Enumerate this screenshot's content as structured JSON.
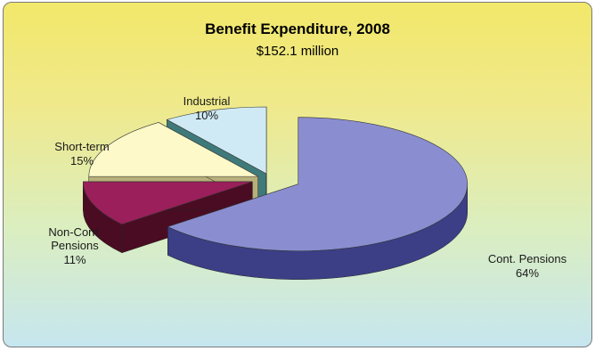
{
  "chart_data": {
    "type": "pie",
    "title": "Benefit Expenditure, 2008",
    "subtitle": "$152.1 million",
    "slices": [
      {
        "name": "Cont. Pensions",
        "value": 64,
        "label": "64%",
        "color": "#8a8ed0",
        "side": "#3c3f86"
      },
      {
        "name": "Non-Cont. Pensions",
        "value": 11,
        "label": "11%",
        "color": "#9a1f5a",
        "side": "#4a0c22"
      },
      {
        "name": "Short-term",
        "value": 15,
        "label": "15%",
        "color": "#fdf9c8",
        "side": "#b8b07a"
      },
      {
        "name": "Industrial",
        "value": 10,
        "label": "10%",
        "color": "#cfeaf5",
        "side": "#3f7a7a"
      }
    ],
    "legend": "none",
    "style": "3d-exploded"
  }
}
